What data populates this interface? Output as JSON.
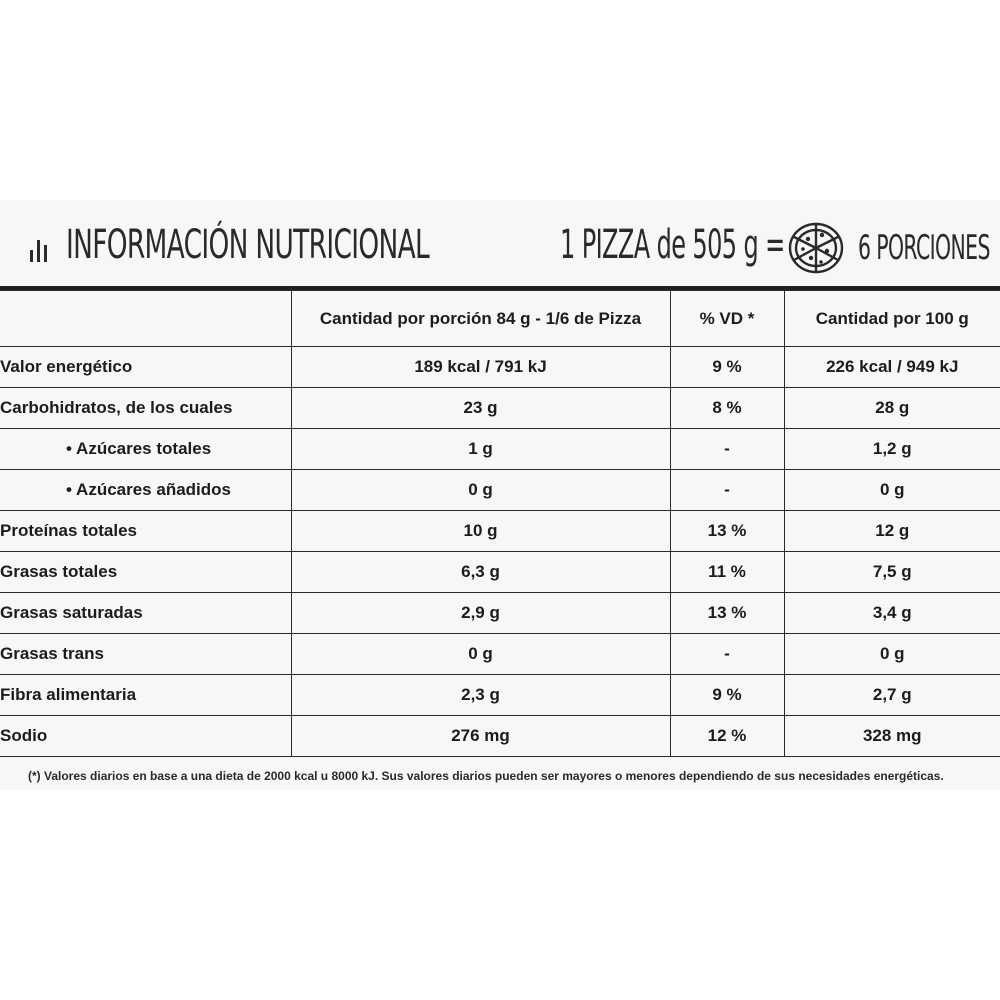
{
  "header": {
    "title": "INFORMACIÓN NUTRICIONAL",
    "pizza_equation": "1 PIZZA de 505 g =",
    "portions": "6 PORCIONES",
    "icons": [
      "bar-chart-icon",
      "pizza-icon"
    ]
  },
  "table": {
    "columns": [
      "",
      "Cantidad por porción 84 g - 1/6 de Pizza",
      "% VD *",
      "Cantidad por 100 g"
    ],
    "rows": [
      {
        "name": "Valor energético",
        "portion": "189 kcal / 791 kJ",
        "vd": "9 %",
        "per100": "226 kcal / 949 kJ"
      },
      {
        "name": "Carbohidratos, de los cuales",
        "portion": "23 g",
        "vd": "8 %",
        "per100": "28 g"
      },
      {
        "name": "• Azúcares totales",
        "portion": "1 g",
        "vd": "-",
        "per100": "1,2 g"
      },
      {
        "name": "• Azúcares añadidos",
        "portion": "0 g",
        "vd": "-",
        "per100": "0 g"
      },
      {
        "name": "Proteínas totales",
        "portion": "10 g",
        "vd": "13 %",
        "per100": "12 g"
      },
      {
        "name": "Grasas totales",
        "portion": "6,3 g",
        "vd": "11 %",
        "per100": "7,5 g"
      },
      {
        "name": "Grasas saturadas",
        "portion": "2,9 g",
        "vd": "13 %",
        "per100": "3,4 g"
      },
      {
        "name": "Grasas trans",
        "portion": "0 g",
        "vd": "-",
        "per100": "0 g"
      },
      {
        "name": "Fibra alimentaria",
        "portion": "2,3 g",
        "vd": "9 %",
        "per100": "2,7 g"
      },
      {
        "name": "Sodio",
        "portion": "276 mg",
        "vd": "12 %",
        "per100": "328 mg"
      }
    ]
  },
  "footnote": "(*) Valores diarios en base a una dieta de 2000 kcal u 8000 kJ. Sus valores diarios pueden ser mayores o menores dependiendo de sus necesidades energéticas."
}
